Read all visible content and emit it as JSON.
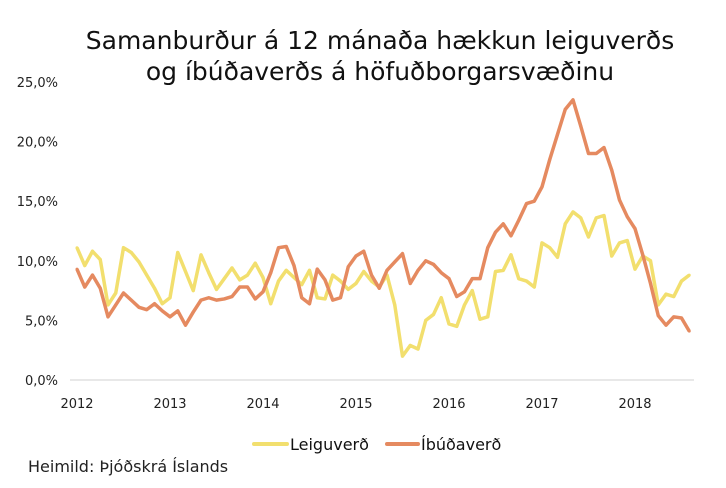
{
  "chart_data": {
    "type": "line",
    "title": [
      "Samanburður á 12 mánaða hækkun leiguverðs",
      "og íbúðaverðs á höfuðborgarsvæðinu"
    ],
    "xlabel": "",
    "ylabel": "",
    "ylim": [
      0,
      25
    ],
    "y_ticks": [
      "0,0%",
      "5,0%",
      "10,0%",
      "15,0%",
      "20,0%",
      "25,0%"
    ],
    "x_ticks": [
      "2012",
      "2013",
      "2014",
      "2015",
      "2016",
      "2017",
      "2018"
    ],
    "grid": false,
    "legend_position": "bottom",
    "x": [
      "2012-01",
      "2012-02",
      "2012-03",
      "2012-04",
      "2012-05",
      "2012-06",
      "2012-07",
      "2012-08",
      "2012-09",
      "2012-10",
      "2012-11",
      "2012-12",
      "2013-01",
      "2013-02",
      "2013-03",
      "2013-04",
      "2013-05",
      "2013-06",
      "2013-07",
      "2013-08",
      "2013-09",
      "2013-10",
      "2013-11",
      "2013-12",
      "2014-01",
      "2014-02",
      "2014-03",
      "2014-04",
      "2014-05",
      "2014-06",
      "2014-07",
      "2014-08",
      "2014-09",
      "2014-10",
      "2014-11",
      "2014-12",
      "2015-01",
      "2015-02",
      "2015-03",
      "2015-04",
      "2015-05",
      "2015-06",
      "2015-07",
      "2015-08",
      "2015-09",
      "2015-10",
      "2015-11",
      "2015-12",
      "2016-01",
      "2016-02",
      "2016-03",
      "2016-04",
      "2016-05",
      "2016-06",
      "2016-07",
      "2016-08",
      "2016-09",
      "2016-10",
      "2016-11",
      "2016-12",
      "2017-01",
      "2017-02",
      "2017-03",
      "2017-04",
      "2017-05",
      "2017-06",
      "2017-07",
      "2017-08",
      "2017-09",
      "2017-10",
      "2017-11",
      "2017-12",
      "2018-01",
      "2018-02",
      "2018-03",
      "2018-04",
      "2018-05",
      "2018-06",
      "2018-07",
      "2018-08"
    ],
    "series": [
      {
        "name": "Leiguverð",
        "color": "#F2DF6E",
        "values": [
          11.1,
          9.6,
          10.8,
          10.1,
          6.3,
          7.3,
          11.1,
          10.7,
          9.9,
          8.8,
          7.7,
          6.4,
          6.9,
          10.7,
          9.1,
          7.5,
          10.5,
          9.0,
          7.6,
          8.5,
          9.4,
          8.4,
          8.8,
          9.8,
          8.6,
          6.4,
          8.3,
          9.2,
          8.6,
          8.0,
          9.2,
          6.9,
          6.8,
          8.8,
          8.3,
          7.6,
          8.1,
          9.1,
          8.3,
          7.8,
          8.8,
          6.3,
          2.0,
          2.9,
          2.6,
          5.0,
          5.5,
          6.9,
          4.7,
          4.5,
          6.3,
          7.5,
          5.1,
          5.3,
          9.1,
          9.2,
          10.5,
          8.5,
          8.3,
          7.8,
          11.5,
          11.1,
          10.3,
          13.1,
          14.1,
          13.6,
          12.0,
          13.6,
          13.8,
          10.4,
          11.5,
          11.7,
          9.3,
          10.4,
          10.0,
          6.3,
          7.2,
          7.0,
          8.3,
          8.8
        ]
      },
      {
        "name": "Íbúðaverð",
        "color": "#E58A60",
        "values": [
          9.3,
          7.8,
          8.8,
          7.7,
          5.3,
          6.3,
          7.3,
          6.7,
          6.1,
          5.9,
          6.4,
          5.8,
          5.3,
          5.8,
          4.6,
          5.7,
          6.7,
          6.9,
          6.7,
          6.8,
          7.0,
          7.8,
          7.8,
          6.8,
          7.4,
          9.0,
          11.1,
          11.2,
          9.6,
          6.9,
          6.4,
          9.3,
          8.4,
          6.7,
          6.9,
          9.5,
          10.4,
          10.8,
          8.8,
          7.7,
          9.2,
          9.9,
          10.6,
          8.1,
          9.2,
          10.0,
          9.7,
          9.0,
          8.5,
          7.0,
          7.4,
          8.5,
          8.5,
          11.1,
          12.4,
          13.1,
          12.1,
          13.4,
          14.8,
          15.0,
          16.2,
          18.5,
          20.6,
          22.7,
          23.5,
          21.3,
          19.0,
          19.0,
          19.5,
          17.6,
          15.1,
          13.7,
          12.7,
          10.5,
          8.1,
          5.4,
          4.6,
          5.3,
          5.2,
          4.1
        ]
      }
    ]
  },
  "source": "Heimild: Þjóðskrá Íslands"
}
